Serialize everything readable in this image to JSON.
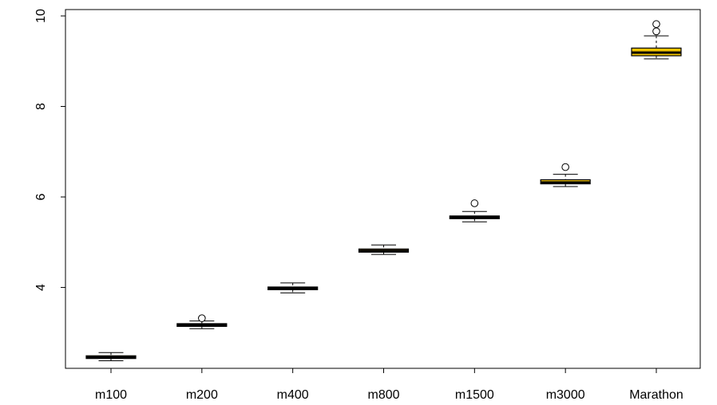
{
  "chart_data": {
    "type": "boxplot",
    "categories": [
      "m100",
      "m200",
      "m400",
      "m800",
      "m1500",
      "m3000",
      "Marathon"
    ],
    "ylim": [
      2.16,
      10.0
    ],
    "yticks": [
      4,
      6,
      8,
      10
    ],
    "ytick_labels": [
      "4",
      "6",
      "8",
      "10"
    ],
    "grid": false,
    "box_fill": "#f2c400",
    "stroke": "#000000",
    "boxes": [
      {
        "category": "m100",
        "min": 2.38,
        "q1": 2.43,
        "median": 2.455,
        "q3": 2.49,
        "max": 2.56,
        "outliers": []
      },
      {
        "category": "m200",
        "min": 3.09,
        "q1": 3.14,
        "median": 3.17,
        "q3": 3.2,
        "max": 3.26,
        "outliers": [
          3.32
        ]
      },
      {
        "category": "m400",
        "min": 3.88,
        "q1": 3.95,
        "median": 3.98,
        "q3": 4.01,
        "max": 4.1,
        "outliers": []
      },
      {
        "category": "m800",
        "min": 4.73,
        "q1": 4.78,
        "median": 4.81,
        "q3": 4.85,
        "max": 4.94,
        "outliers": []
      },
      {
        "category": "m1500",
        "min": 5.45,
        "q1": 5.52,
        "median": 5.545,
        "q3": 5.58,
        "max": 5.68,
        "outliers": [
          5.86
        ]
      },
      {
        "category": "m3000",
        "min": 6.23,
        "q1": 6.29,
        "median": 6.32,
        "q3": 6.38,
        "max": 6.5,
        "outliers": [
          6.66
        ]
      },
      {
        "category": "Marathon",
        "min": 9.05,
        "q1": 9.12,
        "median": 9.19,
        "q3": 9.29,
        "max": 9.56,
        "outliers": [
          9.66,
          9.82
        ]
      }
    ]
  }
}
